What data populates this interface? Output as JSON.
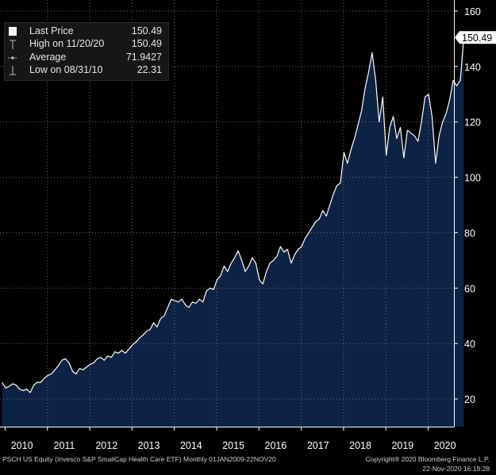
{
  "chart_data": {
    "type": "area",
    "ticker_info": "PSCH US Equity (Invesco S&P SmallCap Health Care ETF)  Monthly 01JAN2009-22NOV20",
    "copyright": "Copyright® 2020 Bloomberg Finance L.P.",
    "timestamp": "22-Nov-2020 16:19:28",
    "x_tick_labels": [
      "2010",
      "2011",
      "2012",
      "2013",
      "2014",
      "2015",
      "2016",
      "2017",
      "2018",
      "2019",
      "2020"
    ],
    "y_tick_labels": [
      "20",
      "40",
      "60",
      "80",
      "100",
      "120",
      "140",
      "160"
    ],
    "y_ticks": [
      20,
      40,
      60,
      80,
      100,
      120,
      140,
      160
    ],
    "ylim": [
      10,
      164
    ],
    "last_price_tag": "150.49",
    "legend": {
      "last_price_label": "Last Price",
      "last_price_value": "150.49",
      "high_label": "High on 11/20/20",
      "high_value": "150.49",
      "average_label": "Average",
      "average_value": "71.9427",
      "low_label": "Low on 08/31/10",
      "low_value": "22.31"
    },
    "colors": {
      "fill": "#0d2346",
      "line": "#ffffff",
      "axis": "#ffffff",
      "background": "#000000"
    },
    "series": [
      {
        "x": [
          "2009-12",
          "2010-01",
          "2010-02",
          "2010-03",
          "2010-04",
          "2010-05",
          "2010-06",
          "2010-07",
          "2010-08",
          "2010-09",
          "2010-10",
          "2010-11",
          "2010-12",
          "2011-01",
          "2011-02",
          "2011-03",
          "2011-04",
          "2011-05",
          "2011-06",
          "2011-07",
          "2011-08",
          "2011-09",
          "2011-10",
          "2011-11",
          "2011-12",
          "2012-01",
          "2012-02",
          "2012-03",
          "2012-04",
          "2012-05",
          "2012-06",
          "2012-07",
          "2012-08",
          "2012-09",
          "2012-10",
          "2012-11",
          "2012-12",
          "2013-01",
          "2013-02",
          "2013-03",
          "2013-04",
          "2013-05",
          "2013-06",
          "2013-07",
          "2013-08",
          "2013-09",
          "2013-10",
          "2013-11",
          "2013-12",
          "2014-01",
          "2014-02",
          "2014-03",
          "2014-04",
          "2014-05",
          "2014-06",
          "2014-07",
          "2014-08",
          "2014-09",
          "2014-10",
          "2014-11",
          "2014-12",
          "2015-01",
          "2015-02",
          "2015-03",
          "2015-04",
          "2015-05",
          "2015-06",
          "2015-07",
          "2015-08",
          "2015-09",
          "2015-10",
          "2015-11",
          "2015-12",
          "2016-01",
          "2016-02",
          "2016-03",
          "2016-04",
          "2016-05",
          "2016-06",
          "2016-07",
          "2016-08",
          "2016-09",
          "2016-10",
          "2016-11",
          "2016-12",
          "2017-01",
          "2017-02",
          "2017-03",
          "2017-04",
          "2017-05",
          "2017-06",
          "2017-07",
          "2017-08",
          "2017-09",
          "2017-10",
          "2017-11",
          "2017-12",
          "2018-01",
          "2018-02",
          "2018-03",
          "2018-04",
          "2018-05",
          "2018-06",
          "2018-07",
          "2018-08",
          "2018-09",
          "2018-10",
          "2018-11",
          "2018-12",
          "2019-01",
          "2019-02",
          "2019-03",
          "2019-04",
          "2019-05",
          "2019-06",
          "2019-07",
          "2019-08",
          "2019-09",
          "2019-10",
          "2019-11",
          "2019-12",
          "2020-01",
          "2020-02",
          "2020-03",
          "2020-04",
          "2020-05",
          "2020-06",
          "2020-07",
          "2020-08",
          "2020-09",
          "2020-10",
          "2020-11"
        ],
        "values": [
          26,
          24,
          24.5,
          25.5,
          25,
          23.5,
          23,
          23.5,
          22.31,
          25,
          26,
          26,
          27.5,
          28.5,
          29,
          30.5,
          32,
          34,
          34.5,
          33,
          30,
          29,
          31,
          30.5,
          31.5,
          32.5,
          33,
          34.5,
          35,
          34,
          35.5,
          35,
          37,
          36.5,
          37.5,
          36.5,
          38,
          39.5,
          40.5,
          42,
          43,
          44.5,
          45,
          47.5,
          46,
          49,
          50,
          53,
          56,
          55.5,
          55,
          56,
          54,
          53,
          55,
          54.5,
          56,
          55,
          59,
          60,
          59.5,
          63,
          64.5,
          68,
          66,
          69,
          71,
          73.5,
          70,
          66,
          68,
          71,
          69,
          63,
          61.5,
          66,
          69,
          70,
          71.5,
          75,
          73,
          74,
          69,
          72,
          74,
          75,
          78,
          80,
          82,
          84,
          85,
          88,
          86,
          90,
          94,
          97,
          98,
          109,
          105,
          110,
          114,
          119,
          124,
          132,
          138,
          145,
          135,
          120,
          129,
          108,
          118,
          122,
          114,
          118,
          107,
          117,
          116,
          115,
          113,
          120,
          129,
          130,
          122,
          105,
          115,
          120,
          123,
          128,
          135,
          133,
          135,
          150.49
        ]
      }
    ]
  }
}
